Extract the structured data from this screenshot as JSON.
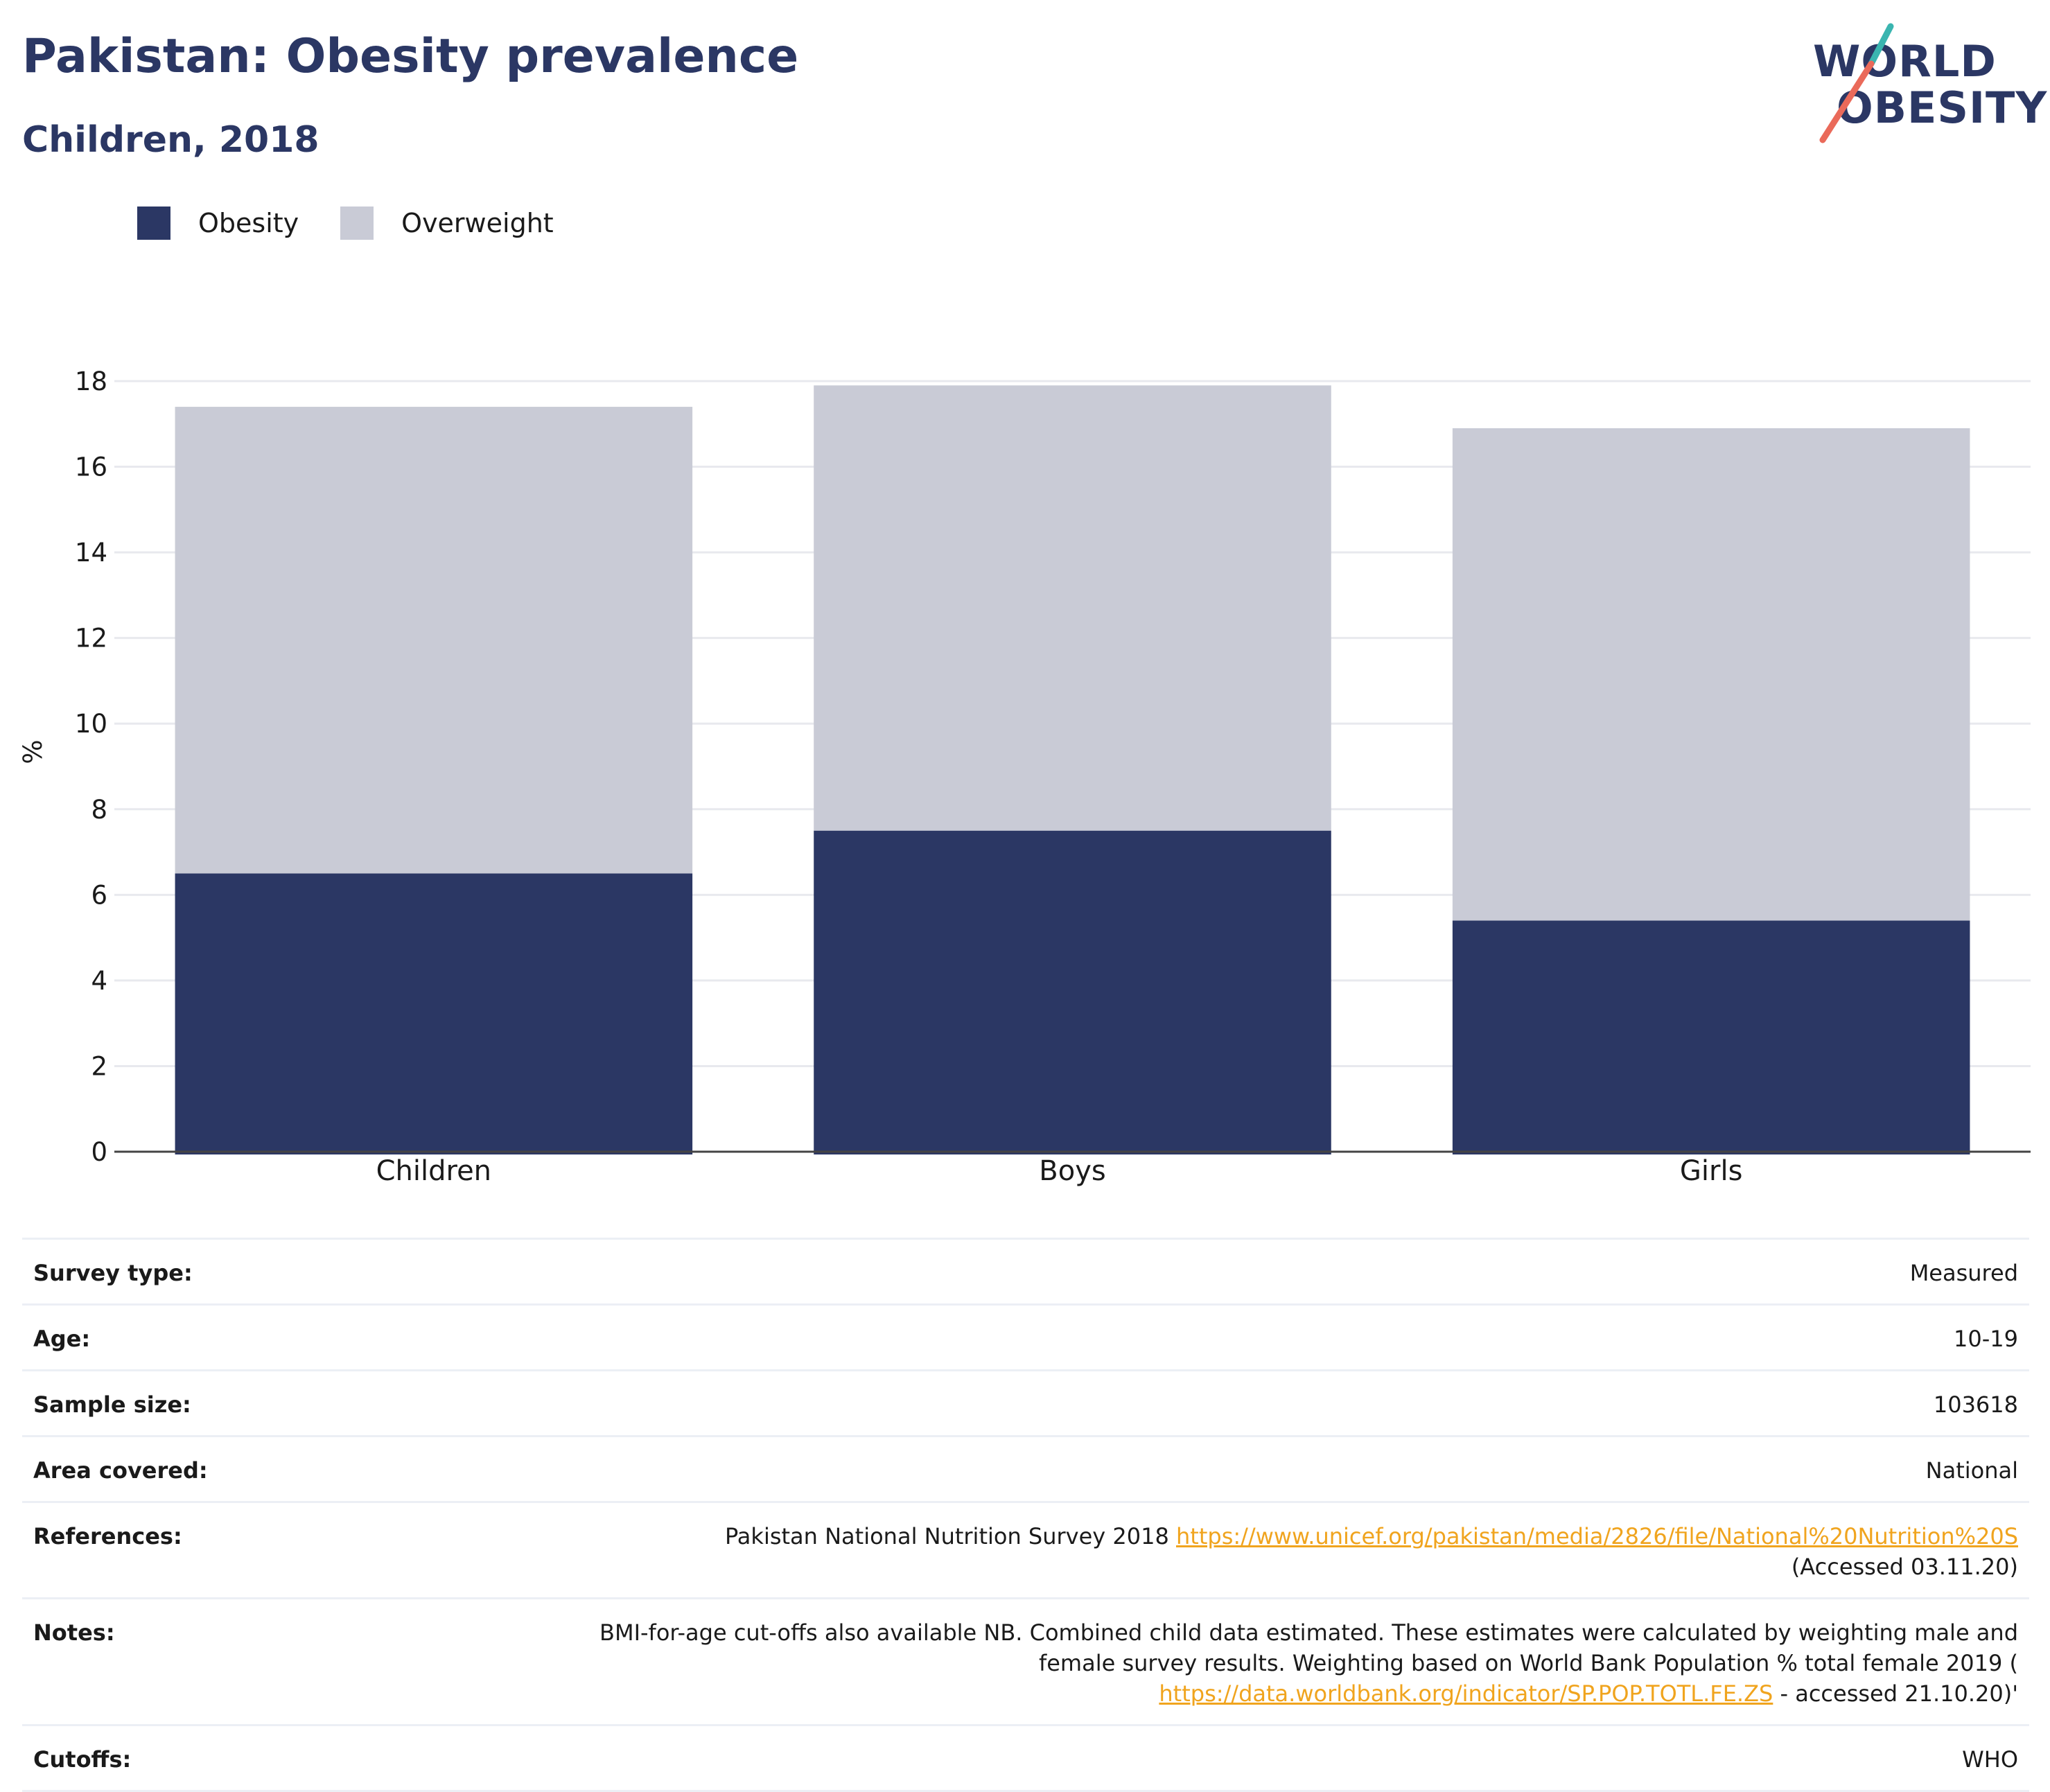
{
  "header": {
    "title": "Pakistan: Obesity prevalence",
    "subtitle": "Children, 2018"
  },
  "logo": {
    "line1": "WORLD",
    "line2": "OBESITY"
  },
  "colors": {
    "obesity": "#2b3764",
    "overweight": "#c9cbd6",
    "link": "#f0a41e",
    "logo_teal": "#3ab5b0",
    "logo_coral": "#ea6a5a"
  },
  "chart_data": {
    "type": "bar",
    "stacked": true,
    "categories": [
      "Children",
      "Boys",
      "Girls"
    ],
    "series": [
      {
        "name": "Obesity",
        "values": [
          6.5,
          7.5,
          5.4
        ]
      },
      {
        "name": "Overweight",
        "values": [
          10.9,
          10.4,
          11.5
        ]
      }
    ],
    "ylabel": "%",
    "ylim": [
      0,
      18
    ],
    "yticks": [
      0,
      2,
      4,
      6,
      8,
      10,
      12,
      14,
      16,
      18
    ],
    "grid": true,
    "legend_position": "top-left"
  },
  "info": {
    "rows": [
      {
        "key": "Survey type:",
        "value": "Measured"
      },
      {
        "key": "Age:",
        "value": "10-19"
      },
      {
        "key": "Sample size:",
        "value": "103618"
      },
      {
        "key": "Area covered:",
        "value": "National"
      },
      {
        "key": "References:",
        "text_before": "Pakistan National Nutrition Survey 2018 ",
        "link": "https://www.unicef.org/pakistan/media/2826/file/National%20Nutrition%20S",
        "text_after": " (Accessed 03.11.20)"
      },
      {
        "key": "Notes:",
        "text_before": "BMI-for-age cut-offs also available NB. Combined child data estimated. These estimates were calculated by weighting male and female survey results. Weighting based on World Bank Population % total female 2019 ( ",
        "link": "https://data.worldbank.org/indicator/SP.POP.TOTL.FE.ZS",
        "text_after": " - accessed 21.10.20)'"
      },
      {
        "key": "Cutoffs:",
        "value": "WHO"
      }
    ]
  }
}
